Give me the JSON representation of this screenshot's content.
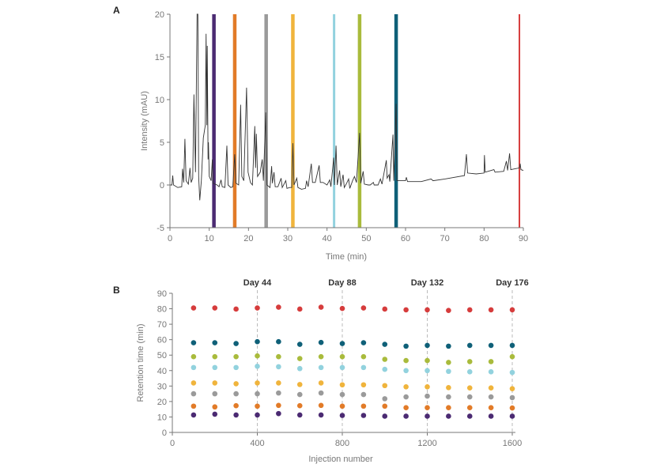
{
  "chart_data": [
    {
      "panel_label": "A",
      "type": "line",
      "xlabel": "Time (min)",
      "ylabel": "Intensity (mAU)",
      "xlim": [
        0,
        90
      ],
      "ylim": [
        -5,
        20
      ],
      "xticks": [
        0,
        10,
        20,
        30,
        40,
        50,
        60,
        70,
        80,
        90
      ],
      "yticks": [
        -5,
        0,
        5,
        10,
        15,
        20
      ],
      "grid": false,
      "line_color": "#333333",
      "trace": [
        [
          0,
          0
        ],
        [
          0.5,
          0
        ],
        [
          0.7,
          1.1
        ],
        [
          0.9,
          0
        ],
        [
          2,
          -0.3
        ],
        [
          3,
          -0.2
        ],
        [
          3.2,
          1.9
        ],
        [
          3.5,
          0.3
        ],
        [
          3.8,
          5.4
        ],
        [
          4.1,
          0.5
        ],
        [
          4.7,
          0.1
        ],
        [
          5.1,
          2
        ],
        [
          5.4,
          0.3
        ],
        [
          5.8,
          0.8
        ],
        [
          6.1,
          10.6
        ],
        [
          6.5,
          1.5
        ],
        [
          6.9,
          20
        ],
        [
          7.1,
          20
        ],
        [
          7.3,
          1
        ],
        [
          7.6,
          -1.8
        ],
        [
          8,
          0.5
        ],
        [
          8.5,
          5.5
        ],
        [
          9,
          7
        ],
        [
          9.2,
          17.7
        ],
        [
          9.4,
          7
        ],
        [
          9.5,
          16.3
        ],
        [
          9.7,
          3
        ],
        [
          9.8,
          5
        ],
        [
          10,
          1
        ],
        [
          10.5,
          0.5
        ],
        [
          10.8,
          3
        ],
        [
          11,
          0.2
        ],
        [
          12,
          0
        ],
        [
          12.5,
          -0.2
        ],
        [
          13,
          0.6
        ],
        [
          13.3,
          -0.2
        ],
        [
          14,
          -0.3
        ],
        [
          14.5,
          4.6
        ],
        [
          14.8,
          0
        ],
        [
          15.5,
          -0.3
        ],
        [
          16,
          -0.2
        ],
        [
          16.5,
          3.6
        ],
        [
          16.8,
          0.2
        ],
        [
          17.5,
          0
        ],
        [
          18,
          9.4
        ],
        [
          18.3,
          1
        ],
        [
          18.8,
          0.5
        ],
        [
          19.5,
          11.4
        ],
        [
          19.9,
          1.5
        ],
        [
          20.5,
          0.3
        ],
        [
          21,
          0
        ],
        [
          21.6,
          6.9
        ],
        [
          21.8,
          2
        ],
        [
          22,
          6
        ],
        [
          22.3,
          1
        ],
        [
          23,
          1.5
        ],
        [
          23.5,
          3
        ],
        [
          23.8,
          0.5
        ],
        [
          24.4,
          8.5
        ],
        [
          24.7,
          0
        ],
        [
          25.5,
          -0.3
        ],
        [
          25.9,
          2.2
        ],
        [
          26.1,
          0.2
        ],
        [
          26.5,
          1.5
        ],
        [
          26.8,
          -0.2
        ],
        [
          27.5,
          -0.2
        ],
        [
          28.3,
          0.8
        ],
        [
          28.6,
          -0.3
        ],
        [
          29.5,
          0.5
        ],
        [
          29.8,
          -0.4
        ],
        [
          30.5,
          -0.3
        ],
        [
          31,
          -0.3
        ],
        [
          31.3,
          4.9
        ],
        [
          31.6,
          0
        ],
        [
          32.3,
          0.8
        ],
        [
          32.6,
          -0.3
        ],
        [
          33.5,
          -0.5
        ],
        [
          34.5,
          -0.4
        ],
        [
          34.8,
          0.5
        ],
        [
          35.2,
          -0.2
        ],
        [
          36,
          2.5
        ],
        [
          36.3,
          0.3
        ],
        [
          37,
          0.3
        ],
        [
          38,
          2.3
        ],
        [
          38.3,
          0.3
        ],
        [
          39,
          0.3
        ],
        [
          40,
          0
        ],
        [
          40.7,
          0.6
        ],
        [
          41,
          -0.2
        ],
        [
          41.7,
          3.2
        ],
        [
          41.9,
          0
        ],
        [
          42.3,
          4.6
        ],
        [
          42.6,
          0
        ],
        [
          43.2,
          1.7
        ],
        [
          43.5,
          -0.2
        ],
        [
          44.1,
          1.2
        ],
        [
          44.4,
          -0.3
        ],
        [
          45,
          0.2
        ],
        [
          45.5,
          0.7
        ],
        [
          45.8,
          -0.4
        ],
        [
          46.5,
          0.5
        ],
        [
          47,
          1
        ],
        [
          47.5,
          0.3
        ],
        [
          48.3,
          6.1
        ],
        [
          48.6,
          0.2
        ],
        [
          49.2,
          1.6
        ],
        [
          49.5,
          0.1
        ],
        [
          50.5,
          0
        ],
        [
          51,
          0
        ],
        [
          51.8,
          0.3
        ],
        [
          52,
          0
        ],
        [
          53,
          0
        ],
        [
          53.6,
          0.7
        ],
        [
          54,
          0.1
        ],
        [
          55.1,
          2.9
        ],
        [
          55.3,
          0.8
        ],
        [
          55.8,
          1.2
        ],
        [
          56,
          0.4
        ],
        [
          56.8,
          5.9
        ],
        [
          57,
          0.5
        ],
        [
          57.6,
          9.5
        ],
        [
          57.8,
          0.5
        ],
        [
          58,
          0.5
        ],
        [
          59,
          0.5
        ],
        [
          60,
          0.5
        ],
        [
          60.2,
          0.9
        ],
        [
          60.5,
          0.4
        ],
        [
          62,
          0.4
        ],
        [
          64,
          0.4
        ],
        [
          66.5,
          0.7
        ],
        [
          67,
          0.5
        ],
        [
          70,
          0.7
        ],
        [
          75,
          1.1
        ],
        [
          75.5,
          3.6
        ],
        [
          75.8,
          1.4
        ],
        [
          78,
          1.3
        ],
        [
          80,
          1.4
        ],
        [
          80.1,
          3.5
        ],
        [
          80.3,
          1.5
        ],
        [
          82.5,
          1.8
        ],
        [
          82.8,
          1.5
        ],
        [
          85,
          1.6
        ],
        [
          85.7,
          2.8
        ],
        [
          86,
          1.7
        ],
        [
          86.5,
          3.7
        ],
        [
          86.8,
          1.8
        ],
        [
          89,
          2
        ],
        [
          89.2,
          2.5
        ],
        [
          89.4,
          1.8
        ],
        [
          90,
          1.7
        ]
      ],
      "highlight_bands": [
        {
          "time": 11.2,
          "color": "#4b2a72"
        },
        {
          "time": 16.5,
          "color": "#e27b28"
        },
        {
          "time": 24.5,
          "color": "#9a9a9a"
        },
        {
          "time": 31.3,
          "color": "#f0b43c"
        },
        {
          "time": 41.8,
          "color": "#92d2de"
        },
        {
          "time": 48.3,
          "color": "#a9bb3c"
        },
        {
          "time": 57.6,
          "color": "#0f6078"
        },
        {
          "time": 89.0,
          "color": "#d63c3c"
        }
      ]
    },
    {
      "panel_label": "B",
      "type": "scatter",
      "xlabel": "Injection number",
      "ylabel": "Retention time (min)",
      "xlim": [
        0,
        1600
      ],
      "ylim": [
        0,
        90
      ],
      "xticks": [
        0,
        400,
        800,
        1200,
        1600
      ],
      "yticks": [
        0,
        10,
        20,
        30,
        40,
        50,
        60,
        70,
        80,
        90
      ],
      "grid": false,
      "annotations": [
        {
          "x": 400,
          "label": "Day 44"
        },
        {
          "x": 800,
          "label": "Day 88"
        },
        {
          "x": 1200,
          "label": "Day 132"
        },
        {
          "x": 1600,
          "label": "Day 176"
        }
      ],
      "x": [
        100,
        200,
        300,
        400,
        500,
        600,
        700,
        800,
        900,
        1000,
        1100,
        1200,
        1300,
        1400,
        1500,
        1600
      ],
      "series": [
        {
          "color": "#d63c3c",
          "values": [
            80.5,
            80.5,
            79.8,
            80.5,
            81,
            79.8,
            81,
            80.2,
            80.5,
            79.8,
            79.3,
            79.3,
            78.9,
            79.3,
            79.3,
            79.3
          ]
        },
        {
          "color": "#0f6078",
          "values": [
            58,
            58,
            57.5,
            58.7,
            58.7,
            57,
            58.2,
            57.5,
            58,
            57,
            55.8,
            56.3,
            55.8,
            56.3,
            56.3,
            56.3
          ]
        },
        {
          "color": "#a9bb3c",
          "values": [
            49,
            49,
            49,
            49.5,
            49,
            47.8,
            49,
            49,
            49,
            47.3,
            46.5,
            46.5,
            45.3,
            45.8,
            45.8,
            49
          ]
        },
        {
          "color": "#92d2de",
          "values": [
            42,
            42,
            42,
            42.8,
            42.5,
            41.3,
            42,
            42,
            42,
            40.8,
            40,
            40,
            39.5,
            39.2,
            39.2,
            38.8
          ]
        },
        {
          "color": "#f0b43c",
          "values": [
            32,
            32,
            31.5,
            32,
            32,
            31,
            32,
            30.8,
            30.8,
            30.3,
            29.5,
            29.5,
            29,
            28.8,
            28.8,
            28.3
          ]
        },
        {
          "color": "#9a9a9a",
          "values": [
            25,
            25,
            25,
            25,
            25.5,
            24.5,
            25.5,
            24.5,
            24.5,
            21.8,
            23,
            23.5,
            23,
            23,
            23,
            22.5
          ]
        },
        {
          "color": "#e27b28",
          "values": [
            17,
            16.5,
            17.3,
            17,
            17.5,
            17.3,
            17.5,
            17,
            17,
            17,
            16,
            16,
            16,
            16,
            16,
            15.8
          ]
        },
        {
          "color": "#4b2a72",
          "values": [
            11.3,
            11.8,
            11.3,
            11.3,
            12.2,
            11.3,
            11.3,
            11,
            11,
            10.5,
            10.5,
            10.5,
            10.5,
            10.5,
            10.5,
            10.5
          ]
        }
      ]
    }
  ]
}
